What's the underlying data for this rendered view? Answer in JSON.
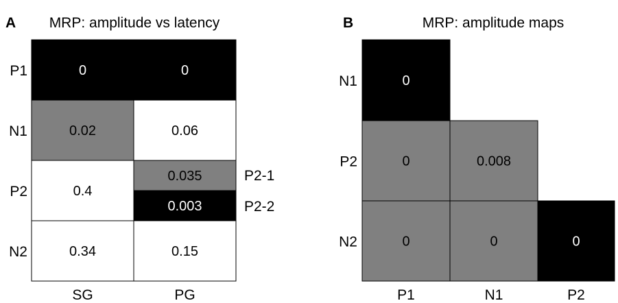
{
  "colors": {
    "black": "#000000",
    "gray": "#808080",
    "white": "#ffffff",
    "line": "#000000"
  },
  "chart_data": [
    {
      "type": "table",
      "panel_letter": "A",
      "title": "MRP: amplitude vs latency",
      "columns": [
        "SG",
        "PG"
      ],
      "rows": [
        "P1",
        "N1",
        "P2",
        "N2"
      ],
      "cells": [
        {
          "row": "P1",
          "col": "SG",
          "value": "0",
          "shade": "black"
        },
        {
          "row": "P1",
          "col": "PG",
          "value": "0",
          "shade": "black"
        },
        {
          "row": "N1",
          "col": "SG",
          "value": "0.02",
          "shade": "gray"
        },
        {
          "row": "N1",
          "col": "PG",
          "value": "0.06",
          "shade": "white"
        },
        {
          "row": "P2",
          "col": "SG",
          "value": "0.4",
          "shade": "white"
        },
        {
          "row": "P2",
          "col": "PG",
          "sub": "P2-1",
          "value": "0.035",
          "shade": "gray"
        },
        {
          "row": "P2",
          "col": "PG",
          "sub": "P2-2",
          "value": "0.003",
          "shade": "black"
        },
        {
          "row": "N2",
          "col": "SG",
          "value": "0.34",
          "shade": "white"
        },
        {
          "row": "N2",
          "col": "PG",
          "value": "0.15",
          "shade": "white"
        }
      ],
      "side_labels": [
        "P2-1",
        "P2-2"
      ]
    },
    {
      "type": "table",
      "panel_letter": "B",
      "title": "MRP: amplitude maps",
      "columns": [
        "P1",
        "N1",
        "P2"
      ],
      "rows": [
        "N1",
        "P2",
        "N2"
      ],
      "cells": [
        {
          "row": "N1",
          "col": "P1",
          "value": "0",
          "shade": "black"
        },
        {
          "row": "P2",
          "col": "P1",
          "value": "0",
          "shade": "gray"
        },
        {
          "row": "P2",
          "col": "N1",
          "value": "0.008",
          "shade": "gray"
        },
        {
          "row": "N2",
          "col": "P1",
          "value": "0",
          "shade": "gray"
        },
        {
          "row": "N2",
          "col": "N1",
          "value": "0",
          "shade": "gray"
        },
        {
          "row": "N2",
          "col": "P2",
          "value": "0",
          "shade": "black"
        }
      ]
    }
  ]
}
